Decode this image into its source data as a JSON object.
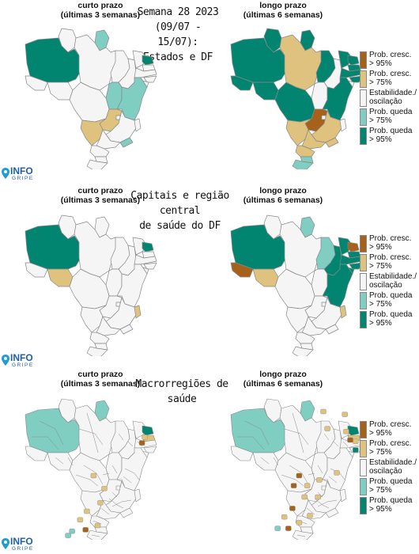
{
  "colors": {
    "strong_up": "#a6611a",
    "up": "#dfc27d",
    "stable": "#f5f5f5",
    "down": "#80cdc1",
    "strong_down": "#018571",
    "border": "#888888"
  },
  "headers": {
    "short": [
      "curto prazo",
      "(últimas 3 semanas)"
    ],
    "long": [
      "longo prazo",
      "(últimas 6 semanas)"
    ]
  },
  "titles": {
    "panel1": [
      "Semana 28 2023",
      "(09/07 - 15/07):",
      "Estados e DF"
    ],
    "panel2": [
      "Capitais e região central",
      "de saúde do DF"
    ],
    "panel3": [
      "Macrorregiões de saúde"
    ]
  },
  "legend": [
    {
      "key": "strong_up",
      "lines": [
        "Prob. cresc.",
        "> 95%"
      ]
    },
    {
      "key": "up",
      "lines": [
        "Prob. cresc.",
        "> 75%"
      ]
    },
    {
      "key": "stable",
      "lines": [
        "Estabilidade./",
        "oscilação"
      ]
    },
    {
      "key": "down",
      "lines": [
        "Prob. queda",
        "> 75%"
      ]
    },
    {
      "key": "strong_down",
      "lines": [
        "Prob. queda",
        "> 95%"
      ]
    }
  ],
  "logo": {
    "name": "INFO",
    "sub": "GRIPE"
  },
  "maps": {
    "states_short": {
      "AM": "strong_down",
      "RR": "stable",
      "AP": "down",
      "PA": "stable",
      "AC": "stable",
      "RO": "stable",
      "MT": "stable",
      "TO": "down",
      "MA": "stable",
      "PI": "stable",
      "CE": "stable",
      "RN": "strong_down",
      "PB": "stable",
      "PE": "stable",
      "AL": "stable",
      "SE": "stable",
      "BA": "down",
      "GO": "up",
      "DF": "stable",
      "MG": "stable",
      "ES": "stable",
      "RJ": "down",
      "SP": "stable",
      "MS": "up",
      "PR": "stable",
      "SC": "stable",
      "RS": "stable"
    },
    "states_long": {
      "AM": "strong_down",
      "RR": "strong_down",
      "AP": "strong_down",
      "PA": "up",
      "AC": "strong_down",
      "RO": "strong_down",
      "MT": "strong_down",
      "TO": "stable",
      "MA": "strong_down",
      "PI": "stable",
      "CE": "strong_down",
      "RN": "strong_down",
      "PB": "strong_down",
      "PE": "strong_down",
      "AL": "strong_down",
      "SE": "stable",
      "BA": "strong_down",
      "GO": "strong_up",
      "DF": "stable",
      "MG": "up",
      "ES": "stable",
      "RJ": "up",
      "SP": "up",
      "MS": "up",
      "PR": "up",
      "SC": "down",
      "RS": "down"
    },
    "capitals_short": {
      "AM": "strong_down",
      "RR": "stable",
      "AP": "stable",
      "PA": "stable",
      "AC": "stable",
      "RO": "up",
      "MT": "stable",
      "TO": "stable",
      "MA": "stable",
      "PI": "stable",
      "CE": "stable",
      "RN": "strong_down",
      "PB": "stable",
      "PE": "stable",
      "AL": "stable",
      "SE": "stable",
      "BA": "stable",
      "GO": "stable",
      "DF": "stable",
      "MG": "stable",
      "ES": "up",
      "RJ": "stable",
      "SP": "stable",
      "MS": "stable",
      "PR": "stable",
      "SC": "stable",
      "RS": "stable"
    },
    "capitals_long": {
      "AM": "strong_down",
      "RR": "stable",
      "AP": "down",
      "PA": "stable",
      "AC": "strong_up",
      "RO": "up",
      "MT": "stable",
      "TO": "stable",
      "MA": "down",
      "PI": "strong_down",
      "CE": "strong_down",
      "RN": "strong_up",
      "PB": "strong_down",
      "PE": "strong_down",
      "AL": "strong_down",
      "SE": "strong_down",
      "BA": "strong_down",
      "GO": "stable",
      "DF": "stable",
      "MG": "stable",
      "ES": "up",
      "RJ": "stable",
      "SP": "stable",
      "MS": "stable",
      "PR": "stable",
      "SC": "stable",
      "RS": "stable"
    },
    "macro_short": {
      "AM": "down",
      "RR": "stable",
      "AP": "down",
      "PA": "stable",
      "AC": "stable",
      "RO": "stable",
      "MT": "stable",
      "TO": "stable",
      "MA": "stable",
      "PI": "stable",
      "CE": "stable",
      "RN": "strong_down",
      "PB": "up",
      "PE": "stable",
      "AL": "stable",
      "SE": "stable",
      "BA": "stable",
      "GO": "stable",
      "DF": "stable",
      "MG": "stable",
      "ES": "stable",
      "RJ": "stable",
      "SP": "stable",
      "MS": "stable",
      "PR": "stable",
      "SC": "stable",
      "RS": "stable"
    },
    "macro_long": {
      "AM": "down",
      "RR": "stable",
      "AP": "down",
      "PA": "stable",
      "AC": "stable",
      "RO": "stable",
      "MT": "stable",
      "TO": "stable",
      "MA": "stable",
      "PI": "stable",
      "CE": "stable",
      "RN": "strong_down",
      "PB": "up",
      "PE": "stable",
      "AL": "stable",
      "SE": "stable",
      "BA": "stable",
      "GO": "stable",
      "DF": "stable",
      "MG": "stable",
      "ES": "stable",
      "RJ": "stable",
      "SP": "stable",
      "MS": "stable",
      "PR": "stable",
      "SC": "stable",
      "RS": "stable"
    },
    "macro_short_spots": [
      [
        "up",
        0.52,
        0.55
      ],
      [
        "up",
        0.6,
        0.64
      ],
      [
        "up",
        0.57,
        0.74
      ],
      [
        "up",
        0.47,
        0.8
      ],
      [
        "up",
        0.42,
        0.86
      ],
      [
        "strong_up",
        0.46,
        0.93
      ],
      [
        "up",
        0.55,
        0.9
      ],
      [
        "down",
        0.36,
        0.94
      ],
      [
        "down",
        0.33,
        0.97
      ],
      [
        "up",
        0.9,
        0.28
      ],
      [
        "strong_up",
        0.88,
        0.32
      ]
    ],
    "macro_long_spots": [
      [
        "up",
        0.7,
        0.1
      ],
      [
        "up",
        0.86,
        0.12
      ],
      [
        "up",
        0.73,
        0.22
      ],
      [
        "up",
        0.87,
        0.24
      ],
      [
        "strong_up",
        0.52,
        0.55
      ],
      [
        "strong_up",
        0.48,
        0.62
      ],
      [
        "up",
        0.58,
        0.62
      ],
      [
        "up",
        0.67,
        0.58
      ],
      [
        "up",
        0.8,
        0.53
      ],
      [
        "up",
        0.56,
        0.7
      ],
      [
        "up",
        0.66,
        0.7
      ],
      [
        "strong_up",
        0.47,
        0.78
      ],
      [
        "up",
        0.41,
        0.84
      ],
      [
        "strong_up",
        0.44,
        0.92
      ],
      [
        "up",
        0.52,
        0.88
      ],
      [
        "down",
        0.36,
        0.92
      ],
      [
        "up",
        0.6,
        0.83
      ],
      [
        "up",
        0.94,
        0.31
      ],
      [
        "strong_up",
        0.9,
        0.3
      ],
      [
        "strong_down",
        0.94,
        0.37
      ]
    ]
  }
}
